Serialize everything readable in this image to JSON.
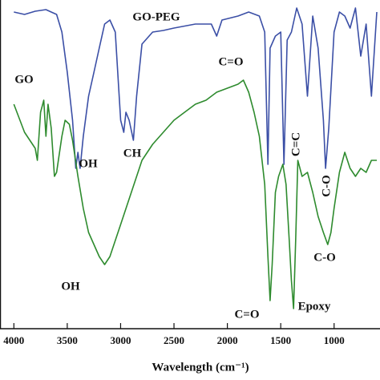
{
  "chart_data": {
    "type": "line",
    "x_label": "Wavelength (cm⁻¹)",
    "xlim": [
      4130,
      570
    ],
    "xticks": [
      4000,
      3500,
      3000,
      2500,
      2000,
      1500,
      1000
    ],
    "ylim": [
      0,
      410
    ],
    "series": [
      {
        "name": "GO-PEG",
        "color": "#3b4fa6",
        "x": [
          4000,
          3900,
          3800,
          3700,
          3650,
          3600,
          3550,
          3500,
          3450,
          3420,
          3400,
          3380,
          3350,
          3300,
          3250,
          3200,
          3150,
          3100,
          3050,
          3000,
          2970,
          2950,
          2920,
          2880,
          2850,
          2800,
          2700,
          2600,
          2500,
          2300,
          2150,
          2100,
          2050,
          1900,
          1800,
          1700,
          1650,
          1620,
          1600,
          1550,
          1500,
          1470,
          1440,
          1400,
          1350,
          1300,
          1250,
          1200,
          1150,
          1100,
          1080,
          1050,
          1000,
          950,
          900,
          850,
          800,
          750,
          700,
          650,
          600
        ],
        "values": [
          395,
          392,
          396,
          398,
          395,
          392,
          370,
          320,
          260,
          200,
          220,
          200,
          240,
          290,
          320,
          350,
          380,
          385,
          370,
          260,
          245,
          270,
          260,
          235,
          290,
          355,
          370,
          372,
          375,
          380,
          380,
          365,
          385,
          390,
          395,
          390,
          370,
          205,
          350,
          365,
          370,
          205,
          360,
          370,
          400,
          380,
          290,
          390,
          350,
          260,
          200,
          250,
          370,
          395,
          390,
          375,
          400,
          340,
          380,
          290,
          395
        ]
      },
      {
        "name": "GO",
        "color": "#2e8b2e",
        "x": [
          4000,
          3900,
          3800,
          3780,
          3750,
          3720,
          3700,
          3680,
          3650,
          3620,
          3600,
          3550,
          3520,
          3480,
          3450,
          3400,
          3350,
          3300,
          3200,
          3150,
          3100,
          3000,
          2900,
          2800,
          2700,
          2600,
          2500,
          2400,
          2300,
          2200,
          2100,
          2000,
          1900,
          1850,
          1800,
          1750,
          1700,
          1650,
          1620,
          1600,
          1580,
          1550,
          1520,
          1480,
          1450,
          1420,
          1400,
          1380,
          1360,
          1340,
          1300,
          1250,
          1200,
          1150,
          1100,
          1060,
          1030,
          1000,
          950,
          900,
          850,
          800,
          750,
          700,
          650,
          600
        ],
        "values": [
          280,
          245,
          225,
          210,
          270,
          285,
          240,
          280,
          250,
          190,
          195,
          240,
          260,
          255,
          235,
          190,
          150,
          120,
          90,
          80,
          90,
          130,
          170,
          210,
          230,
          245,
          260,
          270,
          280,
          285,
          295,
          300,
          305,
          310,
          295,
          270,
          240,
          180,
          90,
          35,
          80,
          170,
          190,
          205,
          180,
          110,
          60,
          25,
          110,
          210,
          190,
          195,
          170,
          140,
          120,
          105,
          120,
          150,
          195,
          220,
          200,
          190,
          200,
          195,
          210,
          210
        ]
      }
    ],
    "annotations": [
      "GO-PEG",
      "GO",
      "OH",
      "CH",
      "C=O",
      "C=C",
      "C-O",
      "OH",
      "C-O",
      "C=O",
      "Epoxy"
    ]
  }
}
